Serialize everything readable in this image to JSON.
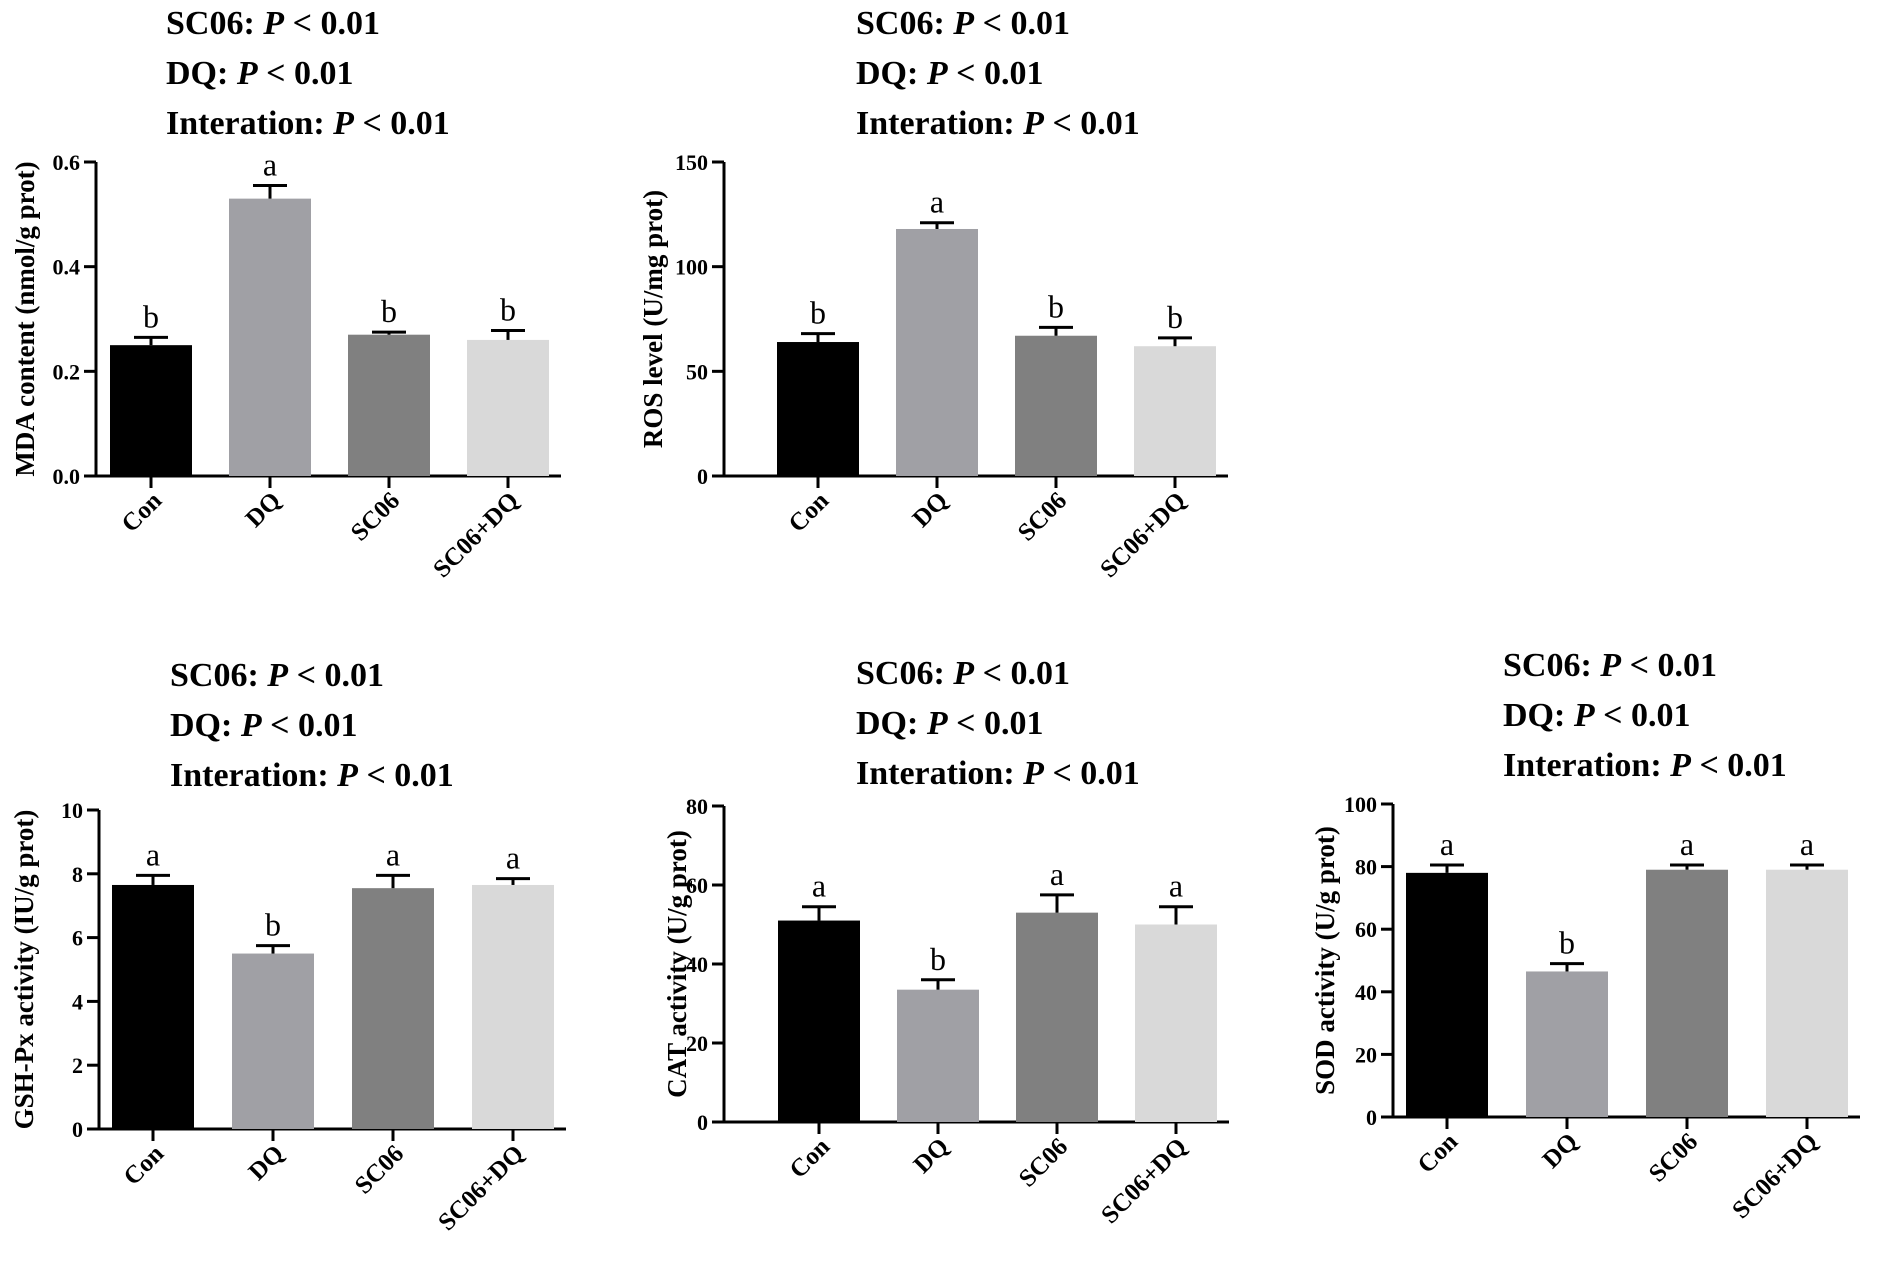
{
  "chart_data": [
    {
      "type": "bar",
      "categories": [
        "Con",
        "DQ",
        "SC06",
        "SC06+DQ"
      ],
      "series": [
        {
          "name": "MDA content",
          "values": [
            0.25,
            0.53,
            0.27,
            0.26
          ]
        }
      ],
      "errors": [
        0.015,
        0.025,
        0.005,
        0.018
      ],
      "significance": [
        "b",
        "a",
        "b",
        "b"
      ],
      "colors": [
        "#000000",
        "#a0a0a5",
        "#808080",
        "#d9d9d9"
      ],
      "ylabel": "MDA content (nmol/g prot)",
      "ylim": [
        0,
        0.6
      ],
      "yticks": [
        "0.0",
        "0.2",
        "0.4",
        "0.6"
      ],
      "stats": [
        {
          "label": "SC06:",
          "p": "P",
          "rest": " < 0.01"
        },
        {
          "label": "DQ:",
          "p": "P",
          "rest": " < 0.01"
        },
        {
          "label": "Interation:",
          "p": "P",
          "rest": " < 0.01"
        }
      ]
    },
    {
      "type": "bar",
      "categories": [
        "Con",
        "DQ",
        "SC06",
        "SC06+DQ"
      ],
      "series": [
        {
          "name": "ROS level",
          "values": [
            64,
            118,
            67,
            62
          ]
        }
      ],
      "errors": [
        4,
        3,
        4,
        4
      ],
      "significance": [
        "b",
        "a",
        "b",
        "b"
      ],
      "colors": [
        "#000000",
        "#a0a0a5",
        "#808080",
        "#d9d9d9"
      ],
      "ylabel": "ROS level (U/mg prot)",
      "ylim": [
        0,
        150
      ],
      "yticks": [
        "0",
        "50",
        "100",
        "150"
      ],
      "stats": [
        {
          "label": "SC06:",
          "p": "P",
          "rest": " < 0.01"
        },
        {
          "label": "DQ:",
          "p": "P",
          "rest": " < 0.01"
        },
        {
          "label": "Interation:",
          "p": "P",
          "rest": " < 0.01"
        }
      ]
    },
    {
      "type": "bar",
      "categories": [
        "Con",
        "DQ",
        "SC06",
        "SC06+DQ"
      ],
      "series": [
        {
          "name": "GSH-Px activity",
          "values": [
            7.65,
            5.5,
            7.55,
            7.65
          ]
        }
      ],
      "errors": [
        0.3,
        0.25,
        0.4,
        0.2
      ],
      "significance": [
        "a",
        "b",
        "a",
        "a"
      ],
      "colors": [
        "#000000",
        "#a0a0a5",
        "#808080",
        "#d9d9d9"
      ],
      "ylabel": "GSH-Px activity (IU/g prot)",
      "ylim": [
        0,
        10
      ],
      "yticks": [
        "0",
        "2",
        "4",
        "6",
        "8",
        "10"
      ],
      "stats": [
        {
          "label": "SC06:",
          "p": "P",
          "rest": " < 0.01"
        },
        {
          "label": "DQ:",
          "p": "P",
          "rest": " < 0.01"
        },
        {
          "label": "Interation:",
          "p": "P",
          "rest": " < 0.01"
        }
      ]
    },
    {
      "type": "bar",
      "categories": [
        "Con",
        "DQ",
        "SC06",
        "SC06+DQ"
      ],
      "series": [
        {
          "name": "CAT activity",
          "values": [
            51,
            33.5,
            53,
            50
          ]
        }
      ],
      "errors": [
        3.5,
        2.5,
        4.5,
        4.5
      ],
      "significance": [
        "a",
        "b",
        "a",
        "a"
      ],
      "colors": [
        "#000000",
        "#a0a0a5",
        "#808080",
        "#d9d9d9"
      ],
      "ylabel": "CAT activity (U/g prot)",
      "ylim": [
        0,
        80
      ],
      "yticks": [
        "0",
        "20",
        "40",
        "60",
        "80"
      ],
      "stats": [
        {
          "label": "SC06:",
          "p": "P",
          "rest": " < 0.01"
        },
        {
          "label": "DQ:",
          "p": "P",
          "rest": " < 0.01"
        },
        {
          "label": "Interation:",
          "p": "P",
          "rest": " < 0.01"
        }
      ]
    },
    {
      "type": "bar",
      "categories": [
        "Con",
        "DQ",
        "SC06",
        "SC06+DQ"
      ],
      "series": [
        {
          "name": "SOD activity",
          "values": [
            78,
            46.5,
            79,
            79
          ]
        }
      ],
      "errors": [
        2.5,
        2.5,
        1.5,
        1.5
      ],
      "significance": [
        "a",
        "b",
        "a",
        "a"
      ],
      "colors": [
        "#000000",
        "#a0a0a5",
        "#808080",
        "#d9d9d9"
      ],
      "ylabel": "SOD activity (U/g prot)",
      "ylim": [
        0,
        100
      ],
      "yticks": [
        "0",
        "20",
        "40",
        "60",
        "80",
        "100"
      ],
      "stats": [
        {
          "label": "SC06:",
          "p": "P",
          "rest": " < 0.01"
        },
        {
          "label": "DQ:",
          "p": "P",
          "rest": " < 0.01"
        },
        {
          "label": "Interation:",
          "p": "P",
          "rest": " < 0.01"
        }
      ]
    }
  ]
}
